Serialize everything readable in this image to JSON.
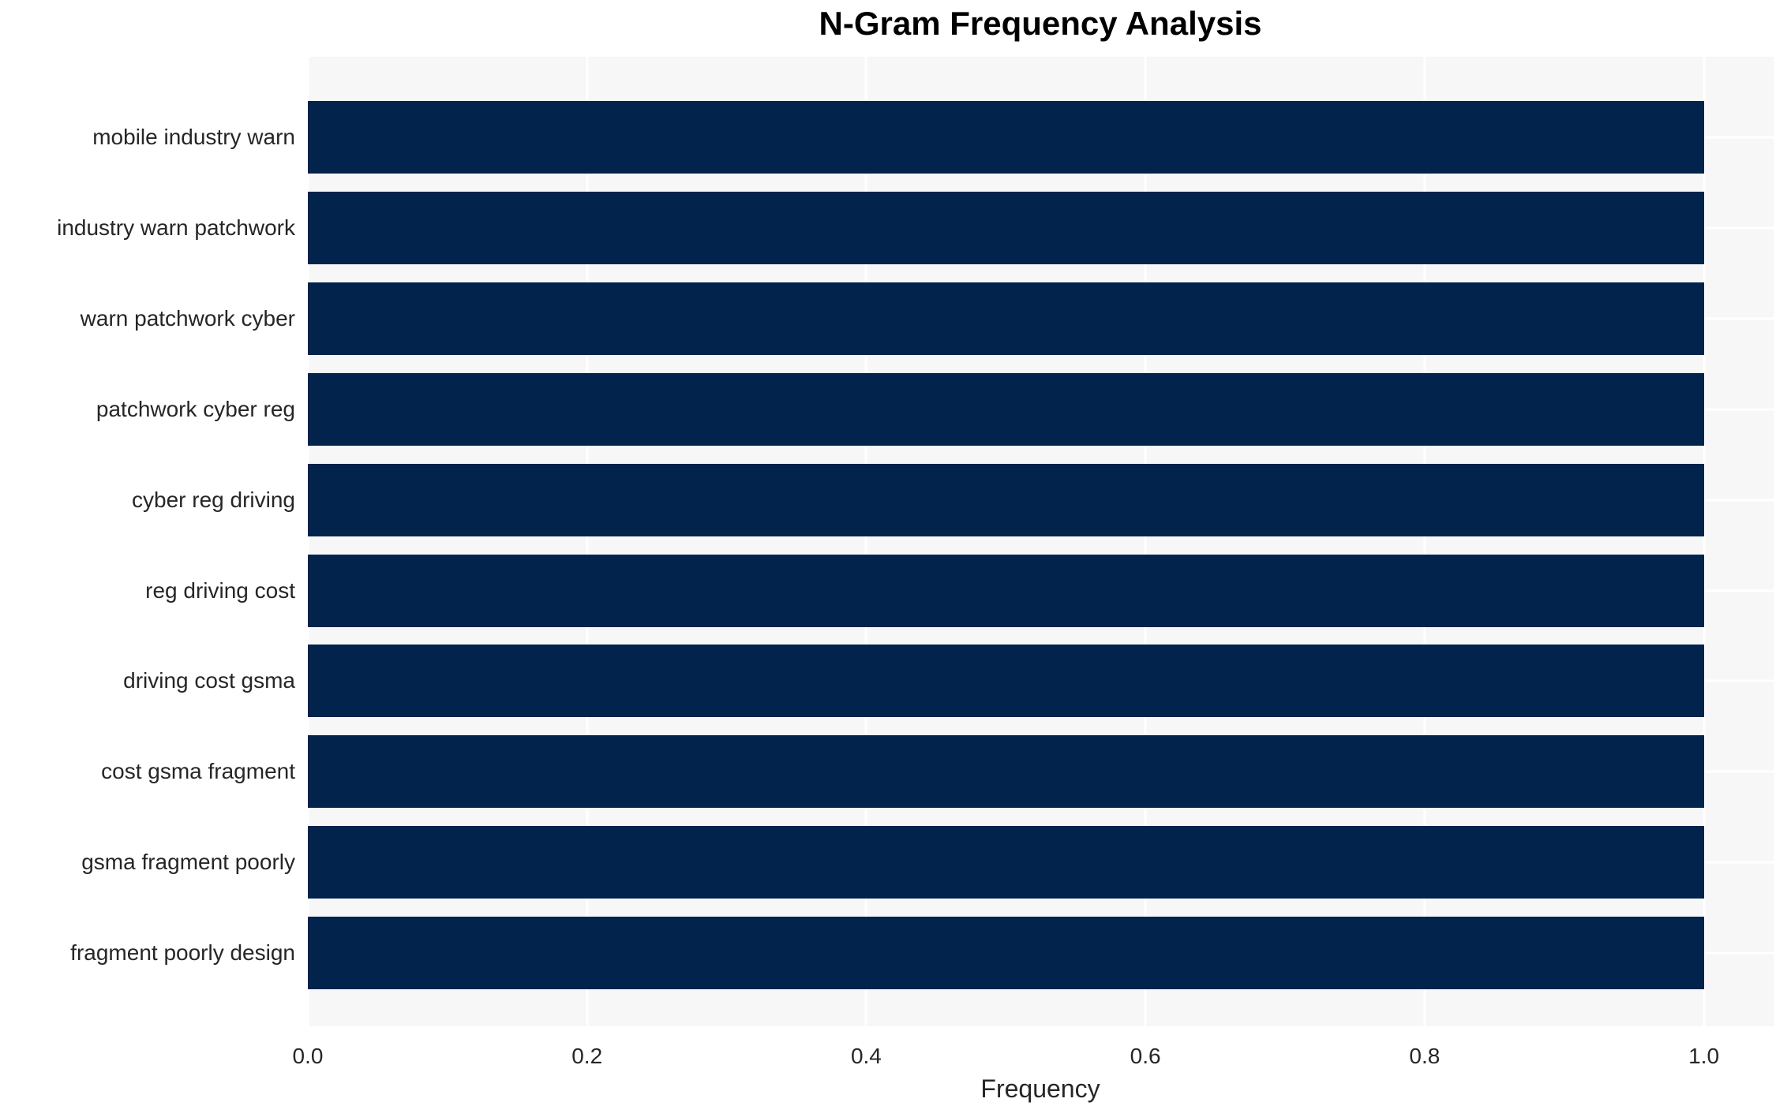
{
  "chart_data": {
    "type": "bar",
    "orientation": "horizontal",
    "title": "N-Gram Frequency Analysis",
    "xlabel": "Frequency",
    "ylabel": "",
    "categories": [
      "mobile industry warn",
      "industry warn patchwork",
      "warn patchwork cyber",
      "patchwork cyber reg",
      "cyber reg driving",
      "reg driving cost",
      "driving cost gsma",
      "cost gsma fragment",
      "gsma fragment poorly",
      "fragment poorly design"
    ],
    "values": [
      1.0,
      1.0,
      1.0,
      1.0,
      1.0,
      1.0,
      1.0,
      1.0,
      1.0,
      1.0
    ],
    "xtick_labels": [
      "0.0",
      "0.2",
      "0.4",
      "0.6",
      "0.8",
      "1.0"
    ],
    "xlim": [
      0.0,
      1.05
    ],
    "grid": true,
    "legend": "none",
    "colors": {
      "bar": "#02234b",
      "plot_background": "#f7f7f7",
      "gridline": "#ffffff",
      "tick_text": "#262626",
      "title_text": "#000000"
    }
  }
}
